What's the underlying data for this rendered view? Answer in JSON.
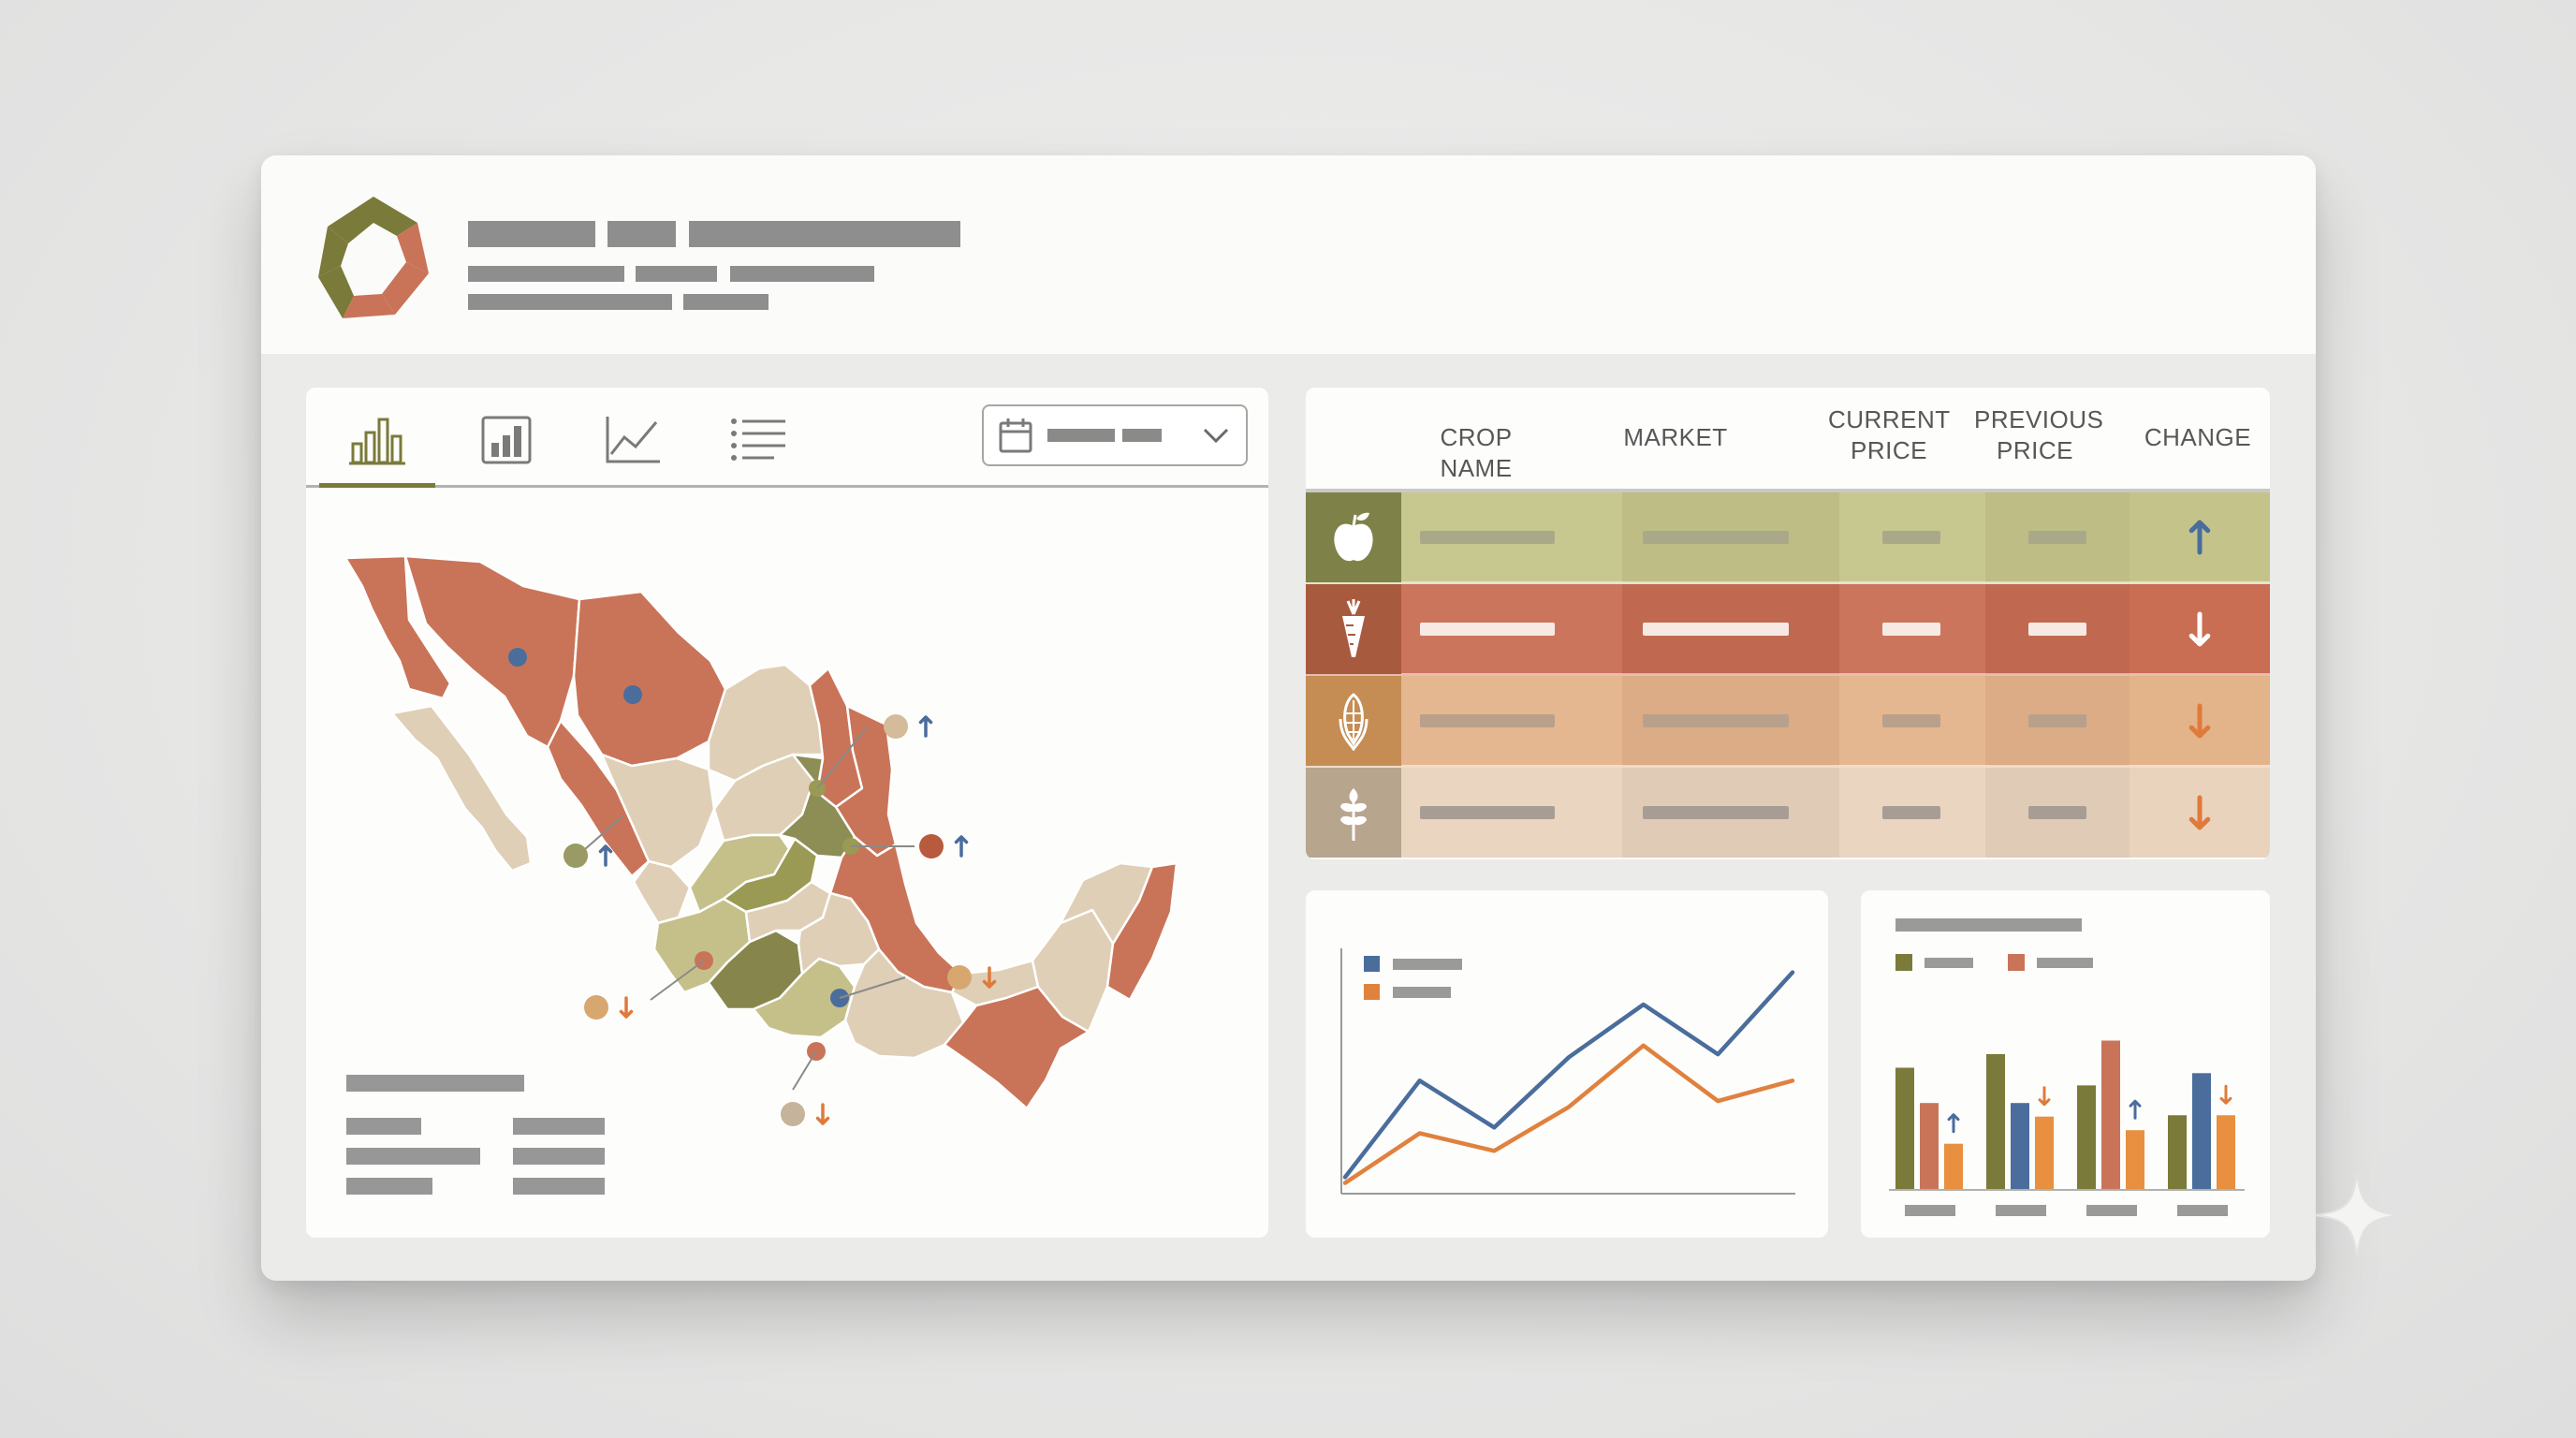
{
  "table": {
    "headers": {
      "crop_name": "CROP NAME",
      "market": "MARKET",
      "current_price": "CURRENT\nPRICE",
      "previous_price": "PREVIOUS\nPRICE",
      "change": "CHANGE"
    },
    "rows": [
      {
        "icon": "apple-icon",
        "change": "up",
        "colors": {
          "icon": "#7e8248",
          "band": "#c4c48a"
        }
      },
      {
        "icon": "carrot-icon",
        "change": "down",
        "colors": {
          "icon": "#a85a3f",
          "band": "#c96d53"
        }
      },
      {
        "icon": "corn-icon",
        "change": "down",
        "colors": {
          "icon": "#c58d54",
          "band": "#e3b38a"
        }
      },
      {
        "icon": "wheat-icon",
        "change": "down",
        "colors": {
          "icon": "#b8a58e",
          "band": "#e9d3bd"
        }
      }
    ]
  },
  "map": {
    "markers": [
      {
        "color": "#d4bc9a",
        "arrow": "up"
      },
      {
        "color": "#b85a3e",
        "arrow": "up"
      },
      {
        "color": "#9a9a64",
        "arrow": "up"
      },
      {
        "color": "#d8a770",
        "arrow": "down"
      },
      {
        "color": "#d8a770",
        "arrow": "down"
      },
      {
        "color": "#c6b39c",
        "arrow": "down"
      }
    ]
  },
  "colors": {
    "olive": "#7a7a3a",
    "terracotta": "#c97458",
    "sand": "#dfcfb6",
    "blue": "#4a6d9c",
    "orange": "#e0813e",
    "up_arrow": "#4a6d9c",
    "down_arrow": "#e07a3a"
  },
  "line_chart": {
    "series": [
      {
        "color": "#4a6d9c",
        "values": [
          5,
          38,
          22,
          46,
          64,
          47,
          75
        ]
      },
      {
        "color": "#e0813e",
        "values": [
          3,
          20,
          14,
          29,
          50,
          31,
          38
        ]
      }
    ]
  },
  "bar_chart": {
    "groups": [
      {
        "values": [
          90,
          64,
          34
        ],
        "markers": [
          {
            "bar": 2,
            "arrow": "up"
          }
        ]
      },
      {
        "values": [
          100,
          64,
          54
        ],
        "markers": [
          {
            "bar": 2,
            "arrow": "down"
          }
        ]
      },
      {
        "values": [
          77,
          110,
          44
        ],
        "markers": [
          {
            "bar": 2,
            "arrow": "up"
          }
        ]
      },
      {
        "values": [
          55,
          86,
          55
        ],
        "markers": [
          {
            "bar": 2,
            "arrow": "down"
          }
        ]
      }
    ],
    "colors": [
      "#7a7a3a",
      "#c97458",
      "#e89040"
    ],
    "alt_colors": [
      "#7a7a3a",
      "#4a6d9c",
      "#e89040"
    ]
  }
}
